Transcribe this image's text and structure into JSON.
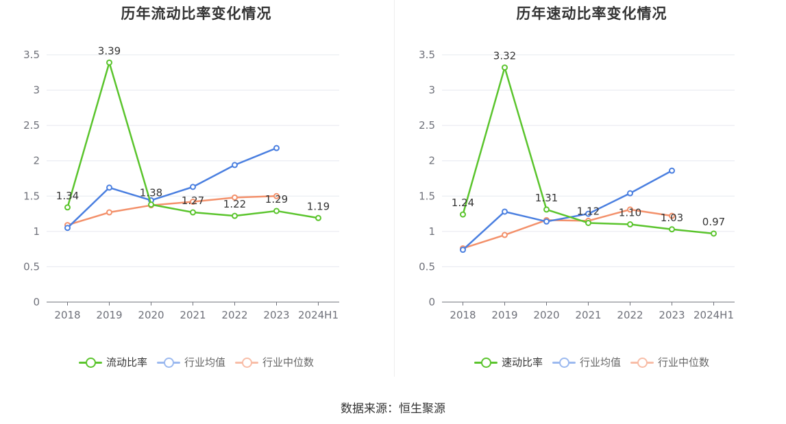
{
  "source": "数据来源：恒生聚源",
  "chart_data": [
    {
      "type": "line",
      "title": "历年流动比率变化情况",
      "categories": [
        "2018",
        "2019",
        "2020",
        "2021",
        "2022",
        "2023",
        "2024H1"
      ],
      "ylim": [
        0,
        3.5
      ],
      "yticks": [
        "0",
        "0.5",
        "1",
        "1.5",
        "2",
        "2.5",
        "3",
        "3.5"
      ],
      "series": [
        {
          "name": "流动比率",
          "color": "#5ac42c",
          "values": [
            1.34,
            3.39,
            1.38,
            1.27,
            1.22,
            1.29,
            1.19
          ],
          "labels": [
            "1.34",
            "3.39",
            "1.38",
            "1.27",
            "1.22",
            "1.29",
            "1.19"
          ],
          "show_labels": true
        },
        {
          "name": "行业均值",
          "color": "#4a7fe0",
          "values": [
            1.05,
            1.62,
            1.44,
            1.63,
            1.94,
            2.18,
            null
          ],
          "show_labels": false
        },
        {
          "name": "行业中位数",
          "color": "#f3906a",
          "values": [
            1.09,
            1.27,
            1.37,
            1.42,
            1.48,
            1.5,
            null
          ],
          "show_labels": false
        }
      ]
    },
    {
      "type": "line",
      "title": "历年速动比率变化情况",
      "categories": [
        "2018",
        "2019",
        "2020",
        "2021",
        "2022",
        "2023",
        "2024H1"
      ],
      "ylim": [
        0,
        3.5
      ],
      "yticks": [
        "0",
        "0.5",
        "1",
        "1.5",
        "2",
        "2.5",
        "3",
        "3.5"
      ],
      "series": [
        {
          "name": "速动比率",
          "color": "#5ac42c",
          "values": [
            1.24,
            3.32,
            1.31,
            1.12,
            1.1,
            1.03,
            0.97
          ],
          "labels": [
            "1.24",
            "3.32",
            "1.31",
            "1.12",
            "1.10",
            "1.03",
            "0.97"
          ],
          "show_labels": true
        },
        {
          "name": "行业均值",
          "color": "#4a7fe0",
          "values": [
            0.74,
            1.28,
            1.14,
            1.25,
            1.54,
            1.86,
            null
          ],
          "show_labels": false
        },
        {
          "name": "行业中位数",
          "color": "#f3906a",
          "values": [
            0.76,
            0.95,
            1.16,
            1.15,
            1.31,
            1.22,
            null
          ],
          "show_labels": false
        }
      ]
    }
  ]
}
